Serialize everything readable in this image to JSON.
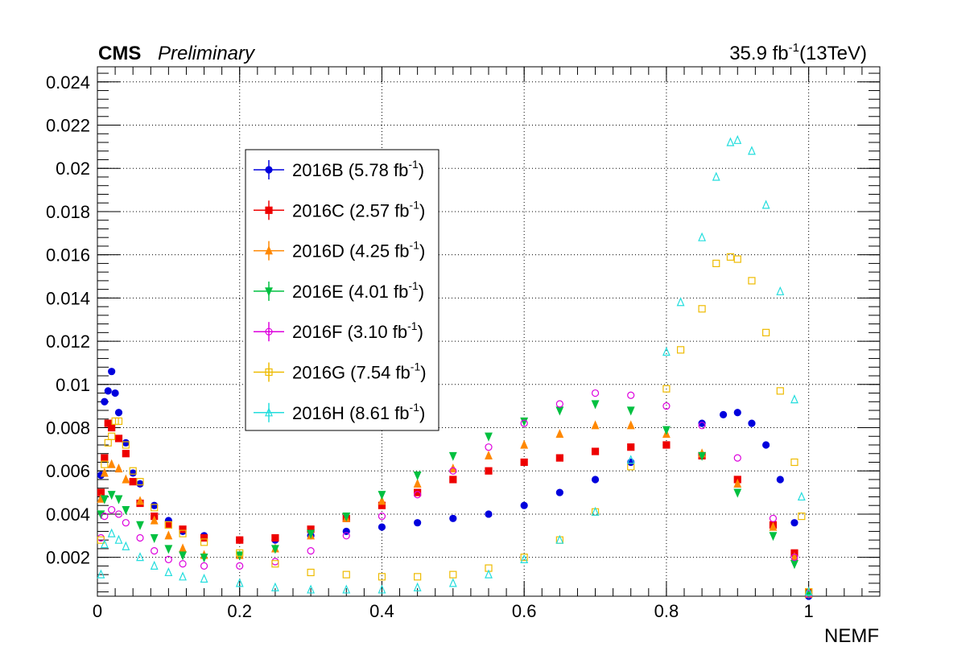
{
  "header": {
    "experiment": "CMS",
    "status": "Preliminary",
    "lumi_value": "35.9 fb",
    "lumi_exp": "-1",
    "energy": "(13TeV)"
  },
  "chart_data": {
    "type": "scatter",
    "xlabel": "NEMF",
    "ylabel": "",
    "xlim": [
      0,
      1.1
    ],
    "ylim": [
      0.0002,
      0.0247
    ],
    "grid": true,
    "legend_placement": "top-left",
    "x_ticks": [
      "0",
      "0.2",
      "0.4",
      "0.6",
      "0.8",
      "1"
    ],
    "y_ticks": [
      "0.002",
      "0.004",
      "0.006",
      "0.008",
      "0.01",
      "0.012",
      "0.014",
      "0.016",
      "0.018",
      "0.02",
      "0.022",
      "0.024"
    ],
    "series": [
      {
        "name": "2016B (5.78 fb",
        "name_exp": "-1",
        "name_tail": ")",
        "color": "#0000dd",
        "marker": "filled-circle",
        "points": [
          [
            0.005,
            0.0058
          ],
          [
            0.01,
            0.0092
          ],
          [
            0.015,
            0.0097
          ],
          [
            0.02,
            0.0106
          ],
          [
            0.025,
            0.0096
          ],
          [
            0.03,
            0.0087
          ],
          [
            0.04,
            0.0073
          ],
          [
            0.05,
            0.0059
          ],
          [
            0.06,
            0.0054
          ],
          [
            0.08,
            0.0044
          ],
          [
            0.1,
            0.0037
          ],
          [
            0.12,
            0.0032
          ],
          [
            0.15,
            0.003
          ],
          [
            0.2,
            0.0028
          ],
          [
            0.25,
            0.0028
          ],
          [
            0.3,
            0.003
          ],
          [
            0.35,
            0.0032
          ],
          [
            0.4,
            0.0034
          ],
          [
            0.45,
            0.0036
          ],
          [
            0.5,
            0.0038
          ],
          [
            0.55,
            0.004
          ],
          [
            0.6,
            0.0044
          ],
          [
            0.65,
            0.005
          ],
          [
            0.7,
            0.0056
          ],
          [
            0.75,
            0.0064
          ],
          [
            0.8,
            0.0072
          ],
          [
            0.85,
            0.0082
          ],
          [
            0.88,
            0.0086
          ],
          [
            0.9,
            0.0087
          ],
          [
            0.92,
            0.0082
          ],
          [
            0.94,
            0.0072
          ],
          [
            0.96,
            0.0056
          ],
          [
            0.98,
            0.0036
          ],
          [
            1.0,
            0.0002
          ]
        ]
      },
      {
        "name": "2016C (2.57 fb",
        "name_exp": "-1",
        "name_tail": ")",
        "color": "#ee0000",
        "marker": "filled-square",
        "points": [
          [
            0.005,
            0.005
          ],
          [
            0.01,
            0.0066
          ],
          [
            0.015,
            0.0082
          ],
          [
            0.02,
            0.008
          ],
          [
            0.03,
            0.0075
          ],
          [
            0.04,
            0.0068
          ],
          [
            0.05,
            0.0055
          ],
          [
            0.06,
            0.0045
          ],
          [
            0.08,
            0.0039
          ],
          [
            0.1,
            0.0035
          ],
          [
            0.12,
            0.0033
          ],
          [
            0.15,
            0.0029
          ],
          [
            0.2,
            0.0028
          ],
          [
            0.25,
            0.0029
          ],
          [
            0.3,
            0.0033
          ],
          [
            0.35,
            0.0038
          ],
          [
            0.4,
            0.0044
          ],
          [
            0.45,
            0.005
          ],
          [
            0.5,
            0.0056
          ],
          [
            0.55,
            0.006
          ],
          [
            0.6,
            0.0064
          ],
          [
            0.65,
            0.0066
          ],
          [
            0.7,
            0.0069
          ],
          [
            0.75,
            0.0071
          ],
          [
            0.8,
            0.0072
          ],
          [
            0.85,
            0.0067
          ],
          [
            0.9,
            0.0056
          ],
          [
            0.95,
            0.0035
          ],
          [
            0.98,
            0.0022
          ],
          [
            1.0,
            0.0004
          ]
        ]
      },
      {
        "name": "2016D (4.25 fb",
        "name_exp": "-1",
        "name_tail": ")",
        "color": "#ff8800",
        "marker": "filled-triangle-up",
        "points": [
          [
            0.005,
            0.0047
          ],
          [
            0.01,
            0.0059
          ],
          [
            0.02,
            0.0063
          ],
          [
            0.03,
            0.0061
          ],
          [
            0.04,
            0.0056
          ],
          [
            0.06,
            0.0046
          ],
          [
            0.08,
            0.0037
          ],
          [
            0.1,
            0.003
          ],
          [
            0.12,
            0.0024
          ],
          [
            0.15,
            0.0021
          ],
          [
            0.2,
            0.0021
          ],
          [
            0.25,
            0.0024
          ],
          [
            0.3,
            0.003
          ],
          [
            0.35,
            0.0038
          ],
          [
            0.4,
            0.0046
          ],
          [
            0.45,
            0.0054
          ],
          [
            0.5,
            0.0061
          ],
          [
            0.55,
            0.0067
          ],
          [
            0.6,
            0.0072
          ],
          [
            0.65,
            0.0077
          ],
          [
            0.7,
            0.0081
          ],
          [
            0.75,
            0.0081
          ],
          [
            0.8,
            0.0077
          ],
          [
            0.85,
            0.0068
          ],
          [
            0.9,
            0.0054
          ],
          [
            0.95,
            0.0034
          ],
          [
            0.98,
            0.002
          ],
          [
            1.0,
            0.0003
          ]
        ]
      },
      {
        "name": "2016E (4.01 fb",
        "name_exp": "-1",
        "name_tail": ")",
        "color": "#00c040",
        "marker": "filled-triangle-down",
        "points": [
          [
            0.005,
            0.004
          ],
          [
            0.01,
            0.0047
          ],
          [
            0.02,
            0.0049
          ],
          [
            0.03,
            0.0047
          ],
          [
            0.04,
            0.0042
          ],
          [
            0.06,
            0.0035
          ],
          [
            0.08,
            0.0029
          ],
          [
            0.1,
            0.0024
          ],
          [
            0.12,
            0.0021
          ],
          [
            0.15,
            0.002
          ],
          [
            0.2,
            0.0021
          ],
          [
            0.25,
            0.0024
          ],
          [
            0.3,
            0.0031
          ],
          [
            0.35,
            0.0039
          ],
          [
            0.4,
            0.0049
          ],
          [
            0.45,
            0.0058
          ],
          [
            0.5,
            0.0067
          ],
          [
            0.55,
            0.0076
          ],
          [
            0.6,
            0.0083
          ],
          [
            0.65,
            0.0088
          ],
          [
            0.7,
            0.0091
          ],
          [
            0.75,
            0.0088
          ],
          [
            0.8,
            0.0079
          ],
          [
            0.85,
            0.0067
          ],
          [
            0.9,
            0.005
          ],
          [
            0.95,
            0.003
          ],
          [
            0.98,
            0.0017
          ],
          [
            1.0,
            0.0003
          ]
        ]
      },
      {
        "name": "2016F (3.10 fb",
        "name_exp": "-1",
        "name_tail": ")",
        "color": "#dd00dd",
        "marker": "open-circle",
        "points": [
          [
            0.005,
            0.0029
          ],
          [
            0.01,
            0.0039
          ],
          [
            0.02,
            0.0042
          ],
          [
            0.03,
            0.004
          ],
          [
            0.04,
            0.0036
          ],
          [
            0.06,
            0.0029
          ],
          [
            0.08,
            0.0023
          ],
          [
            0.1,
            0.0019
          ],
          [
            0.12,
            0.0017
          ],
          [
            0.15,
            0.0016
          ],
          [
            0.2,
            0.0016
          ],
          [
            0.25,
            0.0018
          ],
          [
            0.3,
            0.0023
          ],
          [
            0.35,
            0.003
          ],
          [
            0.4,
            0.0039
          ],
          [
            0.45,
            0.0049
          ],
          [
            0.5,
            0.006
          ],
          [
            0.55,
            0.0071
          ],
          [
            0.6,
            0.0082
          ],
          [
            0.65,
            0.0091
          ],
          [
            0.7,
            0.0096
          ],
          [
            0.75,
            0.0095
          ],
          [
            0.8,
            0.009
          ],
          [
            0.85,
            0.0081
          ],
          [
            0.9,
            0.0066
          ],
          [
            0.95,
            0.0038
          ],
          [
            0.98,
            0.002
          ],
          [
            1.0,
            0.0003
          ]
        ]
      },
      {
        "name": "2016G (7.54 fb",
        "name_exp": "-1",
        "name_tail": ")",
        "color": "#eebb00",
        "marker": "open-square",
        "points": [
          [
            0.005,
            0.0028
          ],
          [
            0.01,
            0.0063
          ],
          [
            0.015,
            0.0073
          ],
          [
            0.02,
            0.0076
          ],
          [
            0.025,
            0.0083
          ],
          [
            0.03,
            0.0083
          ],
          [
            0.04,
            0.0072
          ],
          [
            0.05,
            0.006
          ],
          [
            0.06,
            0.0055
          ],
          [
            0.08,
            0.0043
          ],
          [
            0.1,
            0.0035
          ],
          [
            0.12,
            0.0031
          ],
          [
            0.15,
            0.0027
          ],
          [
            0.2,
            0.0022
          ],
          [
            0.25,
            0.0017
          ],
          [
            0.3,
            0.0013
          ],
          [
            0.35,
            0.0012
          ],
          [
            0.4,
            0.0011
          ],
          [
            0.45,
            0.0011
          ],
          [
            0.5,
            0.0012
          ],
          [
            0.55,
            0.0015
          ],
          [
            0.6,
            0.002
          ],
          [
            0.65,
            0.0028
          ],
          [
            0.7,
            0.0041
          ],
          [
            0.75,
            0.0062
          ],
          [
            0.8,
            0.0098
          ],
          [
            0.82,
            0.0116
          ],
          [
            0.85,
            0.0135
          ],
          [
            0.87,
            0.0156
          ],
          [
            0.89,
            0.0159
          ],
          [
            0.9,
            0.0158
          ],
          [
            0.92,
            0.0148
          ],
          [
            0.94,
            0.0124
          ],
          [
            0.96,
            0.0097
          ],
          [
            0.98,
            0.0064
          ],
          [
            0.99,
            0.0039
          ],
          [
            1.0,
            0.0004
          ]
        ]
      },
      {
        "name": "2016H (8.61 fb",
        "name_exp": "-1",
        "name_tail": ")",
        "color": "#22dddd",
        "marker": "open-triangle-up",
        "points": [
          [
            0.005,
            0.0012
          ],
          [
            0.01,
            0.0026
          ],
          [
            0.02,
            0.0031
          ],
          [
            0.03,
            0.0028
          ],
          [
            0.04,
            0.0025
          ],
          [
            0.06,
            0.002
          ],
          [
            0.08,
            0.0016
          ],
          [
            0.1,
            0.0013
          ],
          [
            0.12,
            0.0011
          ],
          [
            0.15,
            0.001
          ],
          [
            0.2,
            0.0008
          ],
          [
            0.25,
            0.0006
          ],
          [
            0.3,
            0.0005
          ],
          [
            0.35,
            0.0005
          ],
          [
            0.4,
            0.0005
          ],
          [
            0.45,
            0.0006
          ],
          [
            0.5,
            0.0008
          ],
          [
            0.55,
            0.0012
          ],
          [
            0.6,
            0.0019
          ],
          [
            0.65,
            0.0028
          ],
          [
            0.7,
            0.0041
          ],
          [
            0.75,
            0.0065
          ],
          [
            0.8,
            0.0115
          ],
          [
            0.82,
            0.0138
          ],
          [
            0.85,
            0.0168
          ],
          [
            0.87,
            0.0196
          ],
          [
            0.89,
            0.0212
          ],
          [
            0.9,
            0.0213
          ],
          [
            0.92,
            0.0208
          ],
          [
            0.94,
            0.0183
          ],
          [
            0.96,
            0.0143
          ],
          [
            0.98,
            0.0093
          ],
          [
            0.99,
            0.0048
          ],
          [
            1.0,
            0.0004
          ]
        ]
      }
    ]
  }
}
